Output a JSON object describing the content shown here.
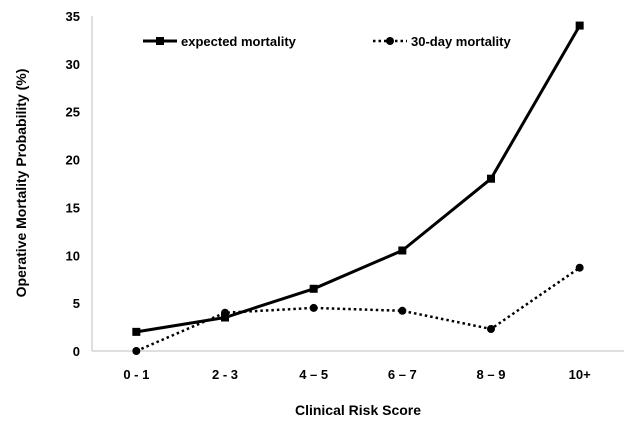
{
  "chart_data": {
    "type": "line",
    "title": "",
    "xlabel": "Clinical Risk Score",
    "ylabel": "Operative Mortality Probability (%)",
    "categories": [
      "0 - 1",
      "2 - 3",
      "4 – 5",
      "6 – 7",
      "8 – 9",
      "10+"
    ],
    "ylim": [
      0,
      35
    ],
    "yticks": [
      "0",
      "5",
      "10",
      "15",
      "20",
      "25",
      "30",
      "35"
    ],
    "grid": false,
    "legend_position": "top",
    "series": [
      {
        "name": "expected mortality",
        "values": [
          2,
          3.5,
          6.5,
          10.5,
          18,
          34
        ],
        "marker": "square",
        "line": "solid",
        "color": "#000000"
      },
      {
        "name": "30-day mortality",
        "values": [
          0,
          4,
          4.5,
          4.2,
          2.3,
          8.7
        ],
        "marker": "circle",
        "line": "dotted",
        "color": "#000000"
      }
    ]
  }
}
